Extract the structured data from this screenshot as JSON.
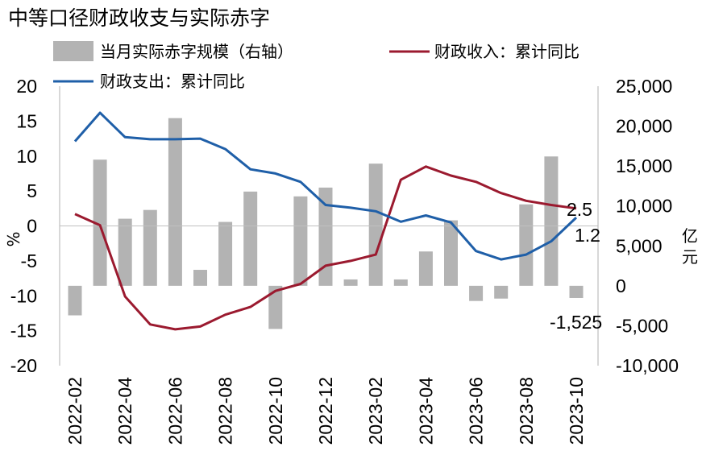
{
  "title": "中等口径财政收支与实际赤字",
  "legend": {
    "bar": "当月实际赤字规模（右轴）",
    "revenue": "财政收入：累计同比",
    "expenditure": "财政支出：累计同比"
  },
  "axes": {
    "left_unit": "%",
    "right_unit": "亿元",
    "left_ticks": [
      "20",
      "15",
      "10",
      "5",
      "0",
      "-5",
      "-10",
      "-15",
      "-20"
    ],
    "right_ticks": [
      "25,000",
      "20,000",
      "15,000",
      "10,000",
      "5,000",
      "0",
      "-5,000",
      "-10,000"
    ]
  },
  "annotations": {
    "revenue_last": "2.5",
    "expenditure_last": "1.2",
    "deficit_last": "-1,525"
  },
  "colors": {
    "bar": "#b3b3b3",
    "revenue": "#9b1a2f",
    "expenditure": "#1f5fa8"
  },
  "chart_data": {
    "type": "bar+line",
    "title": "中等口径财政收支与实际赤字",
    "x_tick_labels": [
      "2022-02",
      "2022-04",
      "2022-06",
      "2022-08",
      "2022-10",
      "2022-12",
      "2023-02",
      "2023-04",
      "2023-06",
      "2023-08",
      "2023-10"
    ],
    "x": [
      "2022-02",
      "2022-03",
      "2022-04",
      "2022-05",
      "2022-06",
      "2022-07",
      "2022-08",
      "2022-09",
      "2022-10",
      "2022-11",
      "2022-12",
      "2023-01",
      "2023-02",
      "2023-03",
      "2023-04",
      "2023-05",
      "2023-06",
      "2023-07",
      "2023-08",
      "2023-09",
      "2023-10"
    ],
    "left_axis": {
      "label": "%",
      "range": [
        -20,
        20
      ],
      "step": 5
    },
    "right_axis": {
      "label": "亿元",
      "range": [
        -10000,
        25000
      ],
      "step": 5000
    },
    "series": [
      {
        "name": "当月实际赤字规模（右轴）",
        "type": "bar",
        "axis": "right",
        "values": [
          -3700,
          15800,
          8400,
          9500,
          21000,
          2000,
          8000,
          11800,
          -5400,
          11200,
          12300,
          800,
          15300,
          800,
          4300,
          8200,
          -1900,
          -1600,
          10200,
          16200,
          -1525
        ]
      },
      {
        "name": "财政收入：累计同比",
        "type": "line",
        "axis": "left",
        "values": [
          1.7,
          0.1,
          -10.1,
          -14.1,
          -14.8,
          -14.4,
          -12.7,
          -11.6,
          -9.3,
          -8.3,
          -5.7,
          -5.0,
          -4.1,
          6.6,
          8.5,
          7.2,
          6.3,
          4.7,
          3.6,
          3.0,
          2.5
        ]
      },
      {
        "name": "财政支出：累计同比",
        "type": "line",
        "axis": "left",
        "values": [
          12.1,
          16.2,
          12.7,
          12.4,
          12.4,
          12.5,
          11.0,
          8.1,
          7.5,
          6.3,
          3.0,
          2.6,
          2.1,
          0.6,
          1.5,
          0.5,
          -3.6,
          -4.8,
          -4.1,
          -2.2,
          1.2
        ]
      }
    ]
  }
}
